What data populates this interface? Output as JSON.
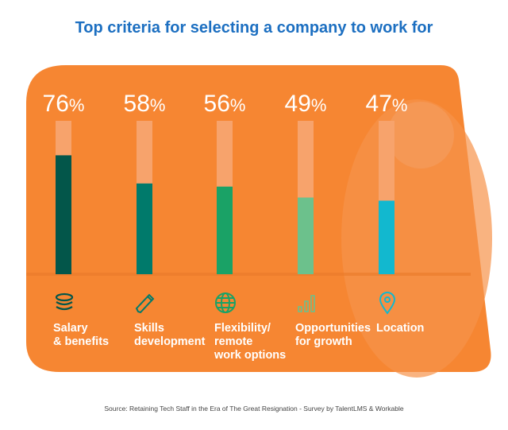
{
  "title": "Top criteria for selecting a company to work for",
  "source": "Source: Retaining Tech Staff in the Era of The Great Resignation - Survey by TalentLMS & Workable",
  "colors": {
    "background": "#F68632",
    "track": "#F7A36C",
    "title": "#1C6FC1"
  },
  "chart_data": {
    "type": "bar",
    "title": "Top criteria for selecting a company to work for",
    "categories": [
      "Salary\n& benefits",
      "Skills\ndevelopment",
      "Flexibility/\nremote\nwork options",
      "Opportunities\nfor growth",
      "Location"
    ],
    "values": [
      76,
      58,
      56,
      49,
      47
    ],
    "labels": [
      "76",
      "58",
      "56",
      "49",
      "47"
    ],
    "unit": "%",
    "ylim": [
      0,
      100
    ],
    "bar_colors": [
      "#03564A",
      "#007A6B",
      "#1AA266",
      "#6CC18C",
      "#12B8CF"
    ],
    "icons": [
      "coins-icon",
      "pencil-icon",
      "globe-icon",
      "bar-chart-icon",
      "location-pin-icon"
    ]
  }
}
